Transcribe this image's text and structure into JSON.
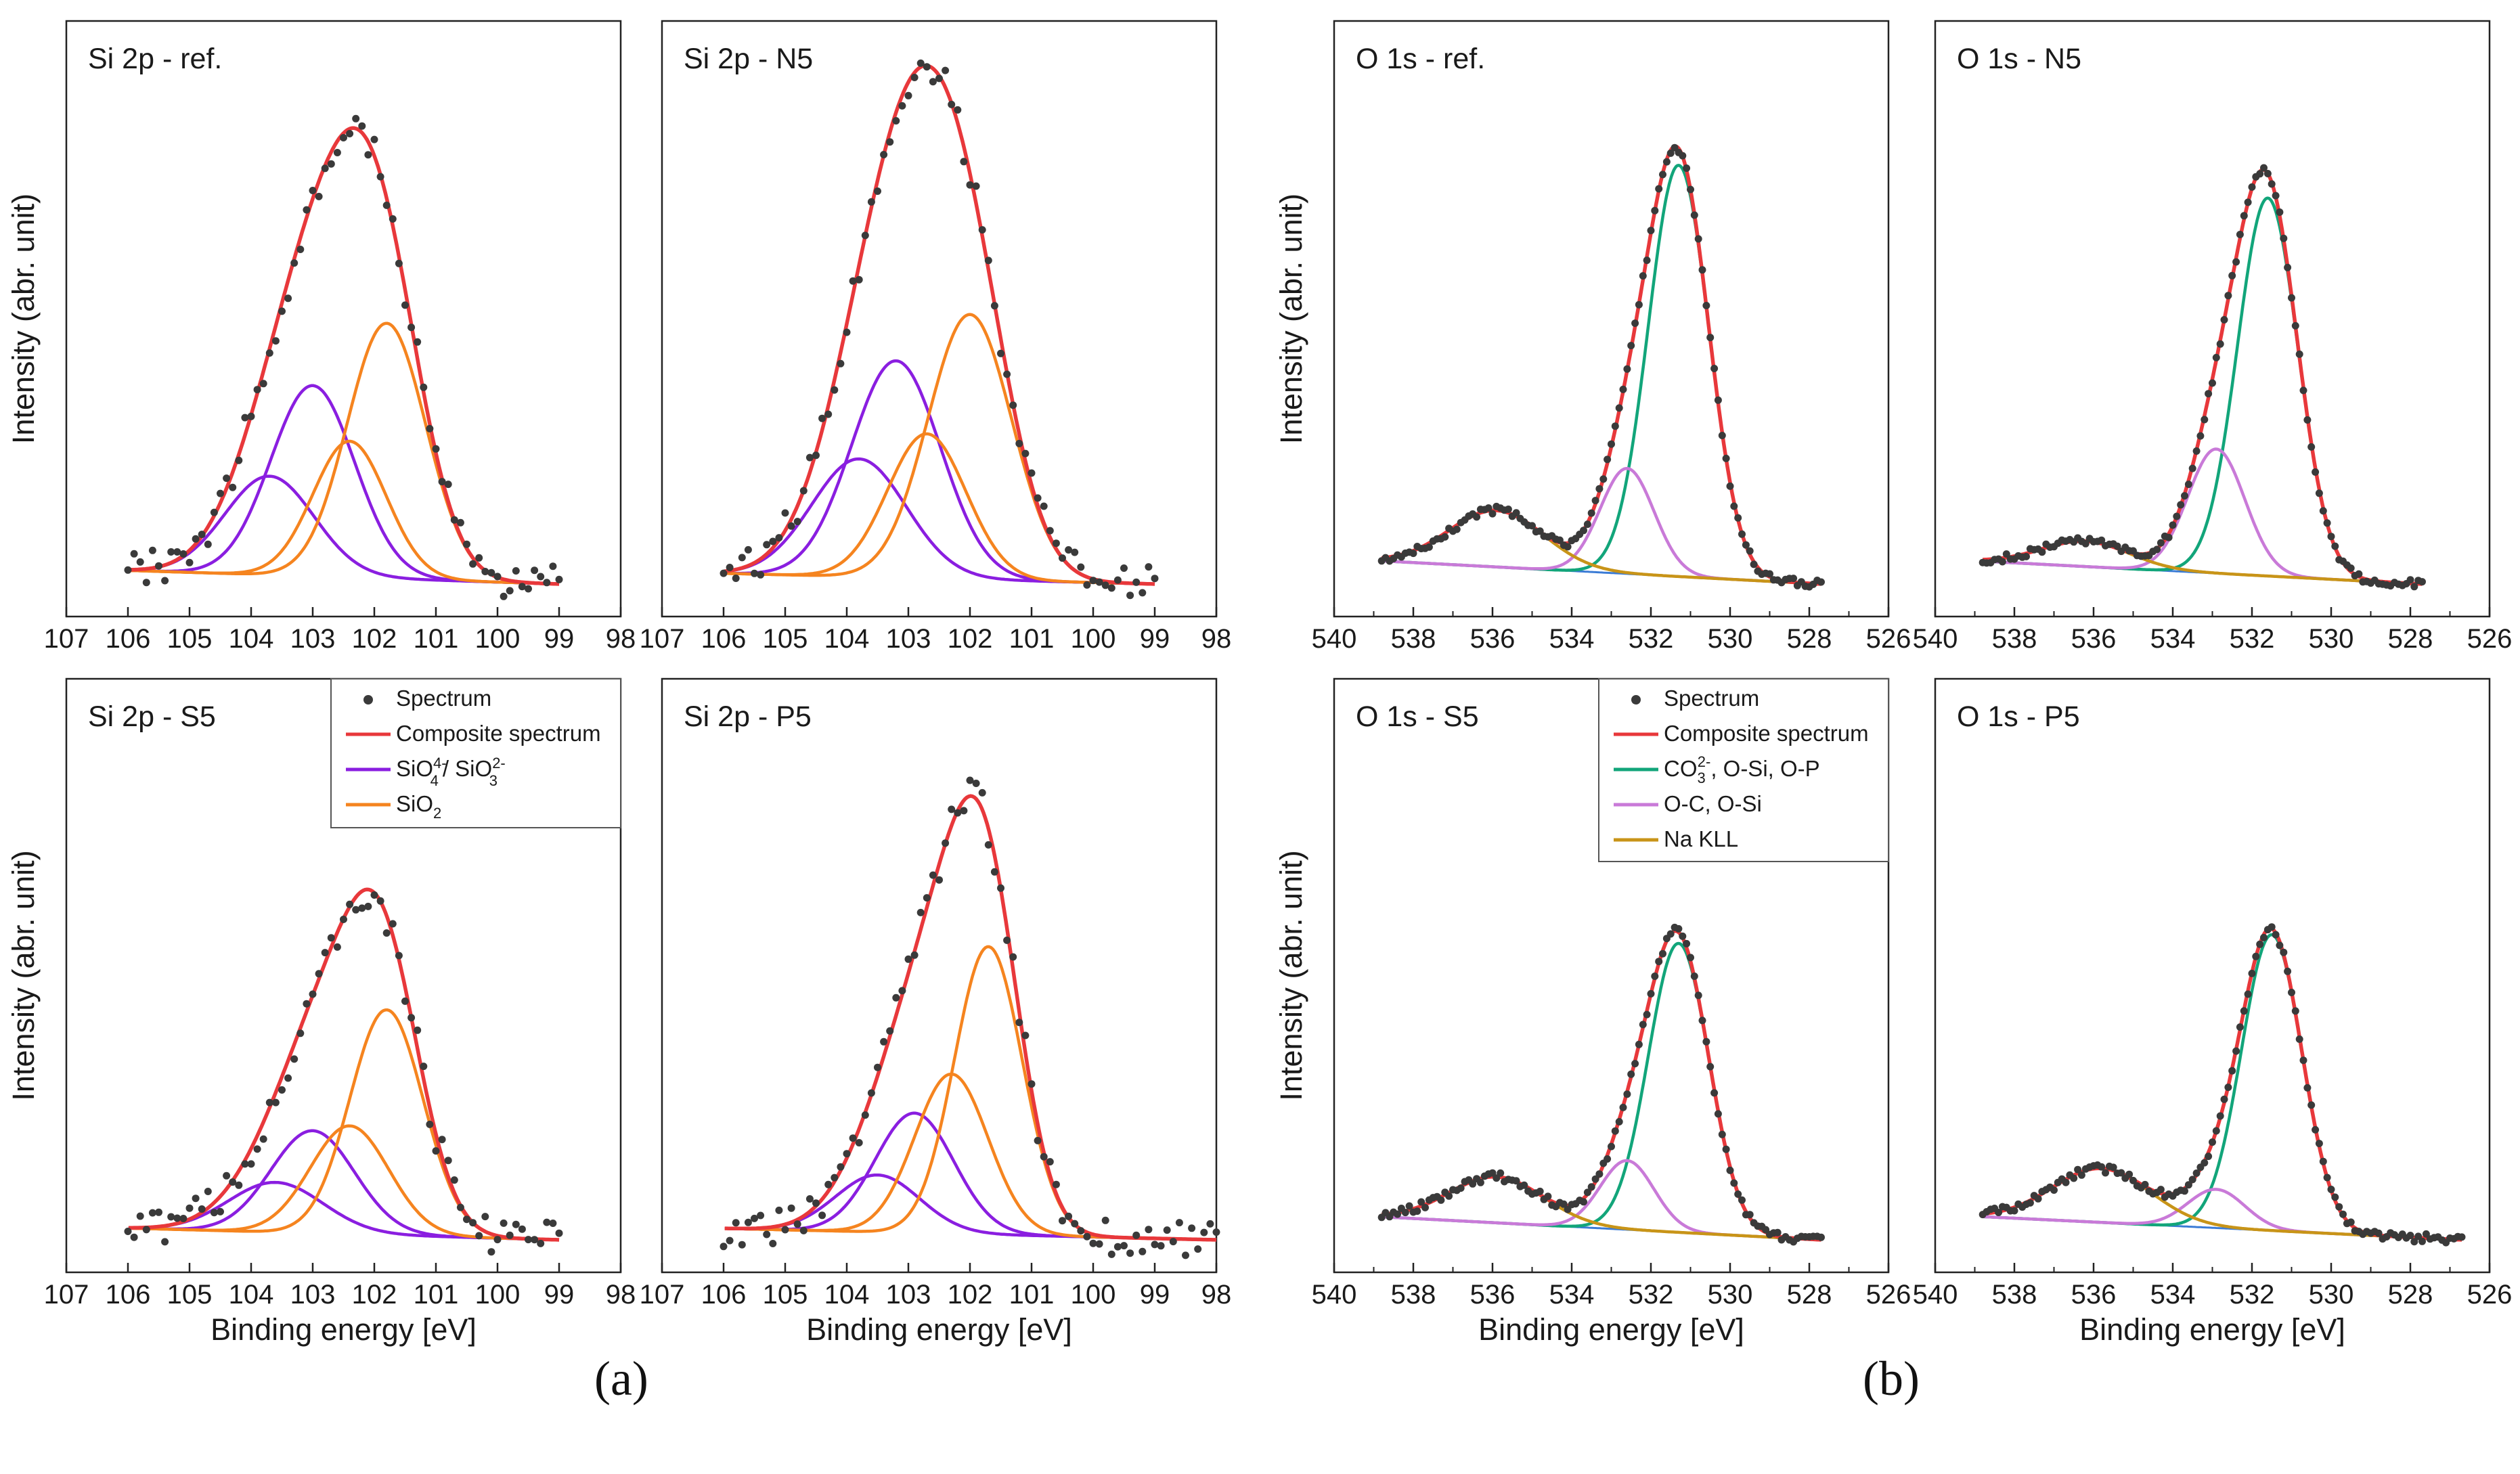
{
  "figure_labels": {
    "a": "(a)",
    "b": "(b)"
  },
  "axes": {
    "ylabel": "Intensity (abr. unit)",
    "xlabel": "Binding energy [eV]",
    "si_ticks": [
      "107",
      "106",
      "105",
      "104",
      "103",
      "102",
      "101",
      "100",
      "99",
      "98"
    ],
    "o_ticks": [
      "540",
      "538",
      "536",
      "534",
      "532",
      "530",
      "528",
      "526"
    ]
  },
  "legends": {
    "si": {
      "spectrum": "Spectrum",
      "composite": "Composite spectrum",
      "silicate_part1": "SiO",
      "silicate_sup1": "4-",
      "silicate_sub1": "4",
      "silicate_part2": "/ SiO",
      "silicate_sup2": "2-",
      "silicate_sub2": "3",
      "sio2_part1": "SiO",
      "sio2_sub": "2"
    },
    "o": {
      "spectrum": "Spectrum",
      "composite": "Composite spectrum",
      "carbonate_part1": "CO",
      "carbonate_sub": "3",
      "carbonate_sup": "2-",
      "carbonate_part2": ", O-Si, O-P",
      "oc": "O-C, O-Si",
      "nakll": "Na KLL"
    }
  },
  "colors": {
    "spectrum": "#3a3a3a",
    "composite": "#e8383b",
    "silicate": "#8a1ee0",
    "sio2": "#f5841f",
    "carbonate": "#12a57a",
    "oc": "#c97ad8",
    "nakll": "#c89418",
    "background": "#3a7bd5"
  },
  "chart_data": [
    {
      "type": "line",
      "title": "Si 2p - ref.",
      "xlabel": "Binding energy [eV]",
      "ylabel": "Intensity (abr. unit)",
      "xlim": [
        107,
        98
      ],
      "x_reversed": true,
      "legend": "none",
      "data_range": [
        106,
        99
      ],
      "series": [
        {
          "name": "SiO4 4- / SiO3 2-",
          "component": "silicate",
          "peaks": [
            [
              103.0,
              0.28,
              1.6
            ],
            [
              103.7,
              0.145,
              1.7
            ]
          ]
        },
        {
          "name": "SiO2",
          "component": "sio2",
          "peaks": [
            [
              101.8,
              0.375,
              1.5
            ],
            [
              102.4,
              0.2,
              1.4
            ]
          ]
        },
        {
          "name": "Composite spectrum",
          "component": "composite",
          "peak": [
            102.3,
            0.875
          ]
        }
      ]
    },
    {
      "type": "line",
      "title": "Si 2p - N5",
      "xlabel": "Binding energy [eV]",
      "ylabel": "Intensity (abr. unit)",
      "xlim": [
        107,
        98
      ],
      "x_reversed": true,
      "legend": "none",
      "data_range": [
        106,
        99
      ],
      "series": [
        {
          "name": "SiO4 4- / SiO3 2-",
          "component": "silicate",
          "peaks": [
            [
              103.2,
              0.405,
              1.7
            ],
            [
              103.8,
              0.22,
              1.8
            ]
          ]
        },
        {
          "name": "SiO2",
          "component": "sio2",
          "peaks": [
            [
              102.0,
              0.495,
              1.6
            ],
            [
              102.7,
              0.27,
              1.5
            ]
          ]
        },
        {
          "name": "Composite spectrum",
          "component": "composite",
          "peak": [
            102.5,
            0.995
          ]
        }
      ]
    },
    {
      "type": "line",
      "title": "Si 2p - S5",
      "xlabel": "Binding energy [eV]",
      "ylabel": "Intensity (abr. unit)",
      "xlim": [
        107,
        98
      ],
      "x_reversed": true,
      "legend": "top-right",
      "data_range": [
        106,
        99
      ],
      "series": [
        {
          "name": "SiO4 4- / SiO3 2-",
          "component": "silicate",
          "peaks": [
            [
              103.0,
              0.175,
              1.6
            ],
            [
              103.6,
              0.085,
              1.8
            ]
          ]
        },
        {
          "name": "SiO2",
          "component": "sio2",
          "peaks": [
            [
              101.8,
              0.385,
              1.4
            ],
            [
              102.4,
              0.185,
              1.5
            ]
          ]
        },
        {
          "name": "Composite spectrum",
          "component": "composite",
          "peak": [
            102.2,
            0.675
          ]
        }
      ]
    },
    {
      "type": "line",
      "title": "Si 2p - P5",
      "xlabel": "Binding energy [eV]",
      "ylabel": "Intensity (abr. unit)",
      "xlim": [
        107,
        98
      ],
      "x_reversed": true,
      "legend": "none",
      "data_range": [
        106,
        98
      ],
      "series": [
        {
          "name": "SiO4 4- / SiO3 2-",
          "component": "silicate",
          "peaks": [
            [
              102.9,
              0.21,
              1.5
            ],
            [
              103.5,
              0.1,
              1.6
            ]
          ]
        },
        {
          "name": "SiO2",
          "component": "sio2",
          "peaks": [
            [
              101.7,
              0.505,
              1.3
            ],
            [
              102.3,
              0.28,
              1.4
            ]
          ]
        },
        {
          "name": "Composite spectrum",
          "component": "composite",
          "peak": [
            102.0,
            0.855
          ]
        }
      ]
    },
    {
      "type": "line",
      "title": "O 1s - ref.",
      "xlabel": "Binding energy [eV]",
      "ylabel": "Intensity (abr. unit)",
      "xlim": [
        540,
        526
      ],
      "x_reversed": true,
      "legend": "none",
      "data_range": [
        538.8,
        527.7
      ],
      "series": [
        {
          "name": "CO3 2-, O-Si, O-P",
          "component": "carbonate",
          "peaks": [
            [
              531.3,
              0.8,
              1.8
            ]
          ]
        },
        {
          "name": "O-C, O-Si",
          "component": "oc",
          "peaks": [
            [
              532.6,
              0.205,
              1.6
            ]
          ]
        },
        {
          "name": "Na KLL",
          "component": "nakll",
          "peaks": [
            [
              535.9,
              0.11,
              2.8
            ]
          ]
        },
        {
          "name": "Composite spectrum",
          "component": "composite",
          "peak": [
            531.3,
            0.84
          ]
        }
      ]
    },
    {
      "type": "line",
      "title": "O 1s - N5",
      "xlabel": "Binding energy [eV]",
      "ylabel": "Intensity (abr. unit)",
      "xlim": [
        540,
        526
      ],
      "x_reversed": true,
      "legend": "none",
      "data_range": [
        538.8,
        527.7
      ],
      "series": [
        {
          "name": "CO3 2-, O-Si, O-P",
          "component": "carbonate",
          "peaks": [
            [
              531.6,
              0.745,
              1.8
            ]
          ]
        },
        {
          "name": "O-C, O-Si",
          "component": "oc",
          "peaks": [
            [
              532.9,
              0.245,
              1.7
            ]
          ]
        },
        {
          "name": "Na KLL",
          "component": "nakll",
          "peaks": [
            [
              536.2,
              0.05,
              2.6
            ]
          ]
        },
        {
          "name": "Composite spectrum",
          "component": "composite",
          "peak": [
            531.7,
            0.795
          ]
        }
      ]
    },
    {
      "type": "line",
      "title": "O 1s - S5",
      "xlabel": "Binding energy [eV]",
      "ylabel": "Intensity (abr. unit)",
      "xlim": [
        540,
        526
      ],
      "x_reversed": true,
      "legend": "top-right",
      "data_range": [
        538.8,
        527.7
      ],
      "series": [
        {
          "name": "CO3 2-, O-Si, O-P",
          "component": "carbonate",
          "peaks": [
            [
              531.3,
              0.565,
              1.8
            ]
          ]
        },
        {
          "name": "O-C, O-Si",
          "component": "oc",
          "peaks": [
            [
              532.6,
              0.135,
              1.6
            ]
          ]
        },
        {
          "name": "Na KLL",
          "component": "nakll",
          "peaks": [
            [
              535.9,
              0.09,
              2.8
            ]
          ]
        },
        {
          "name": "Composite spectrum",
          "component": "composite",
          "peak": [
            531.3,
            0.595
          ]
        }
      ]
    },
    {
      "type": "line",
      "title": "O 1s - P5",
      "xlabel": "Binding energy [eV]",
      "ylabel": "Intensity (abr. unit)",
      "xlim": [
        540,
        526
      ],
      "x_reversed": true,
      "legend": "none",
      "data_range": [
        538.8,
        526.7
      ],
      "series": [
        {
          "name": "CO3 2-, O-Si, O-P",
          "component": "carbonate",
          "peaks": [
            [
              531.5,
              0.575,
              1.8
            ]
          ]
        },
        {
          "name": "O-C, O-Si",
          "component": "oc",
          "peaks": [
            [
              532.9,
              0.075,
              1.7
            ]
          ]
        },
        {
          "name": "Na KLL",
          "component": "nakll",
          "peaks": [
            [
              535.8,
              0.105,
              2.9
            ]
          ]
        },
        {
          "name": "Composite spectrum",
          "component": "composite",
          "peak": [
            531.5,
            0.6
          ]
        }
      ]
    }
  ]
}
